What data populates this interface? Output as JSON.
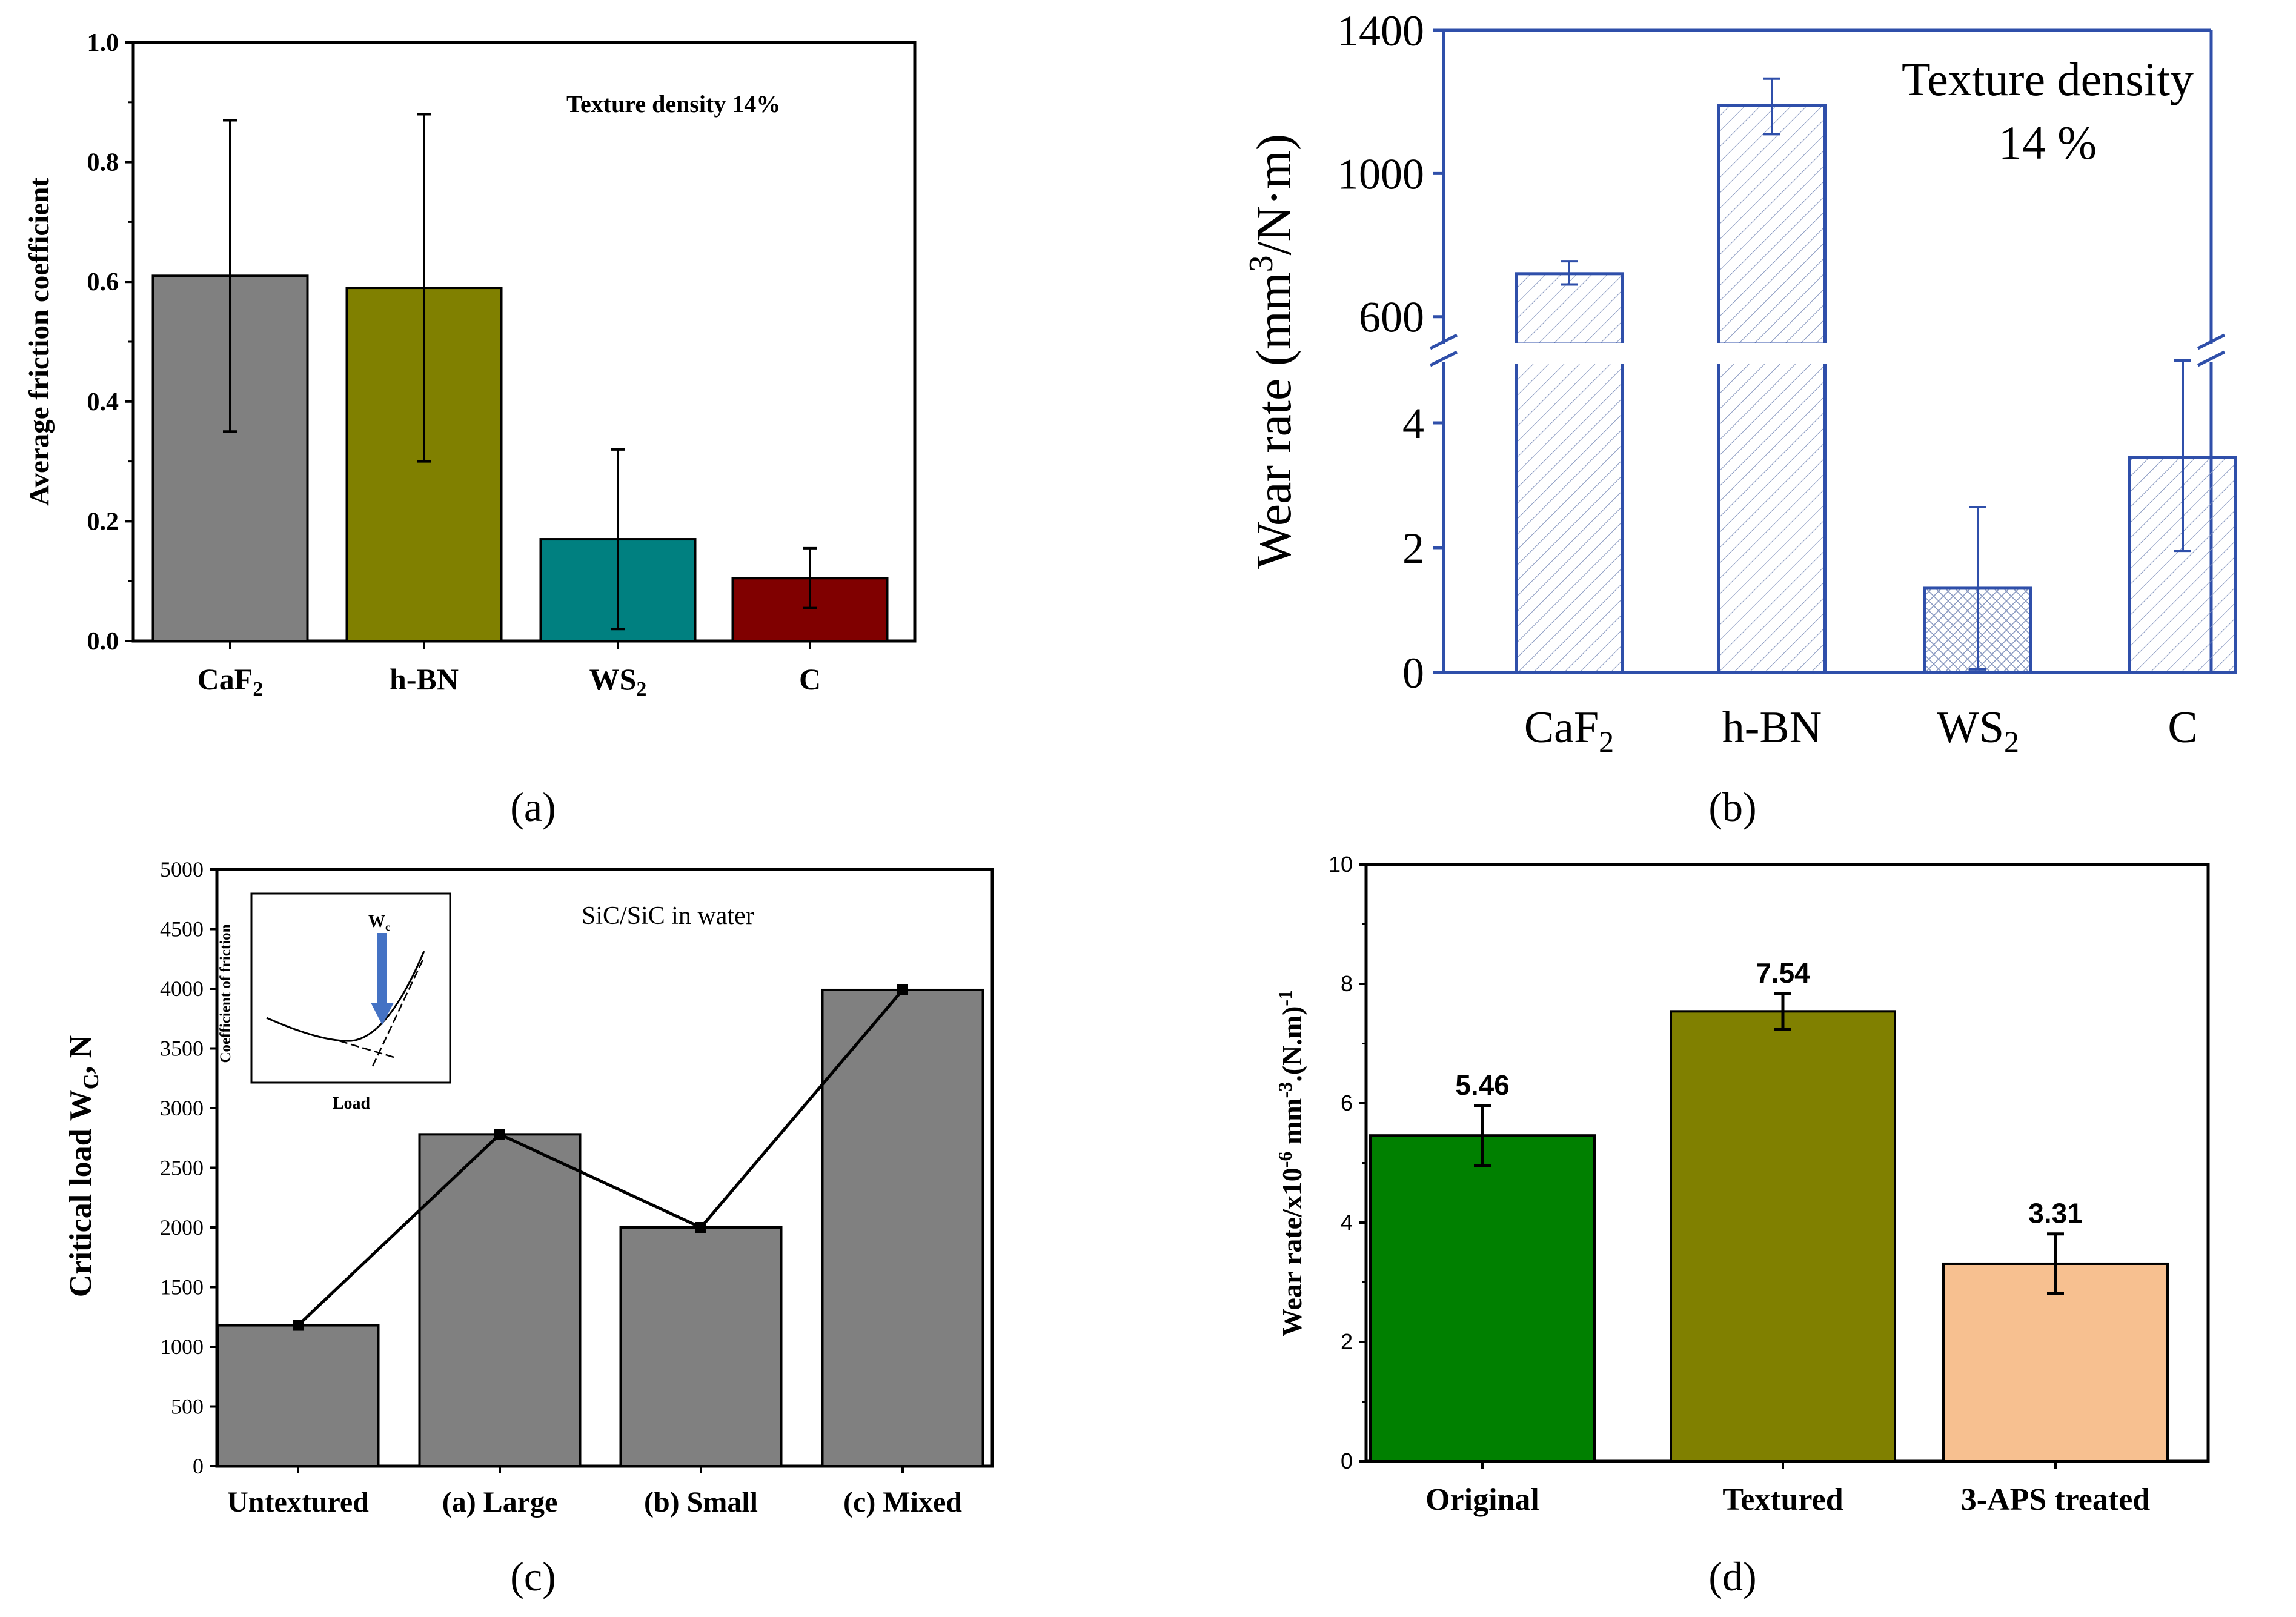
{
  "chart_data": [
    {
      "id": "a",
      "type": "bar",
      "panel_label": "(a)",
      "annotation": "Texture density 14%",
      "ylabel": "Average friction coefficient",
      "xlabel": "",
      "ylim": [
        0,
        1.0
      ],
      "yticks": [
        "0.0",
        "0.2",
        "0.4",
        "0.6",
        "0.8",
        "1.0"
      ],
      "categories": [
        {
          "base": "CaF",
          "sub": "2"
        },
        {
          "base": "h-BN",
          "sub": ""
        },
        {
          "base": "WS",
          "sub": "2"
        },
        {
          "base": "C",
          "sub": ""
        }
      ],
      "values": [
        0.61,
        0.59,
        0.17,
        0.105
      ],
      "error_low": [
        0.35,
        0.3,
        0.02,
        0.055
      ],
      "error_high": [
        0.87,
        0.88,
        0.32,
        0.155
      ],
      "colors": [
        "#808080",
        "#808000",
        "#008080",
        "#800000"
      ]
    },
    {
      "id": "b",
      "type": "bar",
      "panel_label": "(b)",
      "annotation_line1": "Texture density",
      "annotation_line2": "14 %",
      "ylabel_prefix": "Wear rate (mm",
      "ylabel_sup": "3",
      "ylabel_suffix": "/N·m)",
      "broken_axis": true,
      "lower_range": [
        0,
        5
      ],
      "upper_range": [
        520,
        1400
      ],
      "lower_ticks": [
        "0",
        "2",
        "4"
      ],
      "upper_ticks": [
        "600",
        "1000",
        "1400"
      ],
      "categories": [
        {
          "base": "CaF",
          "sub": "2"
        },
        {
          "base": "h-BN",
          "sub": ""
        },
        {
          "base": "WS",
          "sub": "2"
        },
        {
          "base": "C",
          "sub": ""
        }
      ],
      "values": [
        720,
        1190,
        1.35,
        3.45
      ],
      "error_low": [
        690,
        1110,
        0.05,
        1.95
      ],
      "error_high": [
        755,
        1265,
        2.65,
        5.0
      ],
      "color": "#2f4faa"
    },
    {
      "id": "c",
      "type": "bar",
      "panel_label": "(c)",
      "annotation": "SiC/SiC in water",
      "ylabel_prefix": "Critical load W",
      "ylabel_sub": "C",
      "ylabel_suffix": ", N",
      "ylim": [
        0,
        5000
      ],
      "yticks": [
        "0",
        "500",
        "1000",
        "1500",
        "2000",
        "2500",
        "3000",
        "3500",
        "4000",
        "4500",
        "5000"
      ],
      "categories": [
        "Untextured",
        "(a) Large",
        "(b) Small",
        "(c) Mixed"
      ],
      "values": [
        1180,
        2780,
        2000,
        3990
      ],
      "line_overlay": [
        1180,
        2780,
        2000,
        3990
      ],
      "color": "#808080",
      "inset": {
        "ylabel": "Coefficient of friction",
        "xlabel": "Load",
        "marker_label": "W",
        "marker_sub": "c"
      }
    },
    {
      "id": "d",
      "type": "bar",
      "panel_label": "(d)",
      "ylabel_text": "Wear rate/x10",
      "ylabel_sup1": "-6",
      "ylabel_mid": " mm",
      "ylabel_sup2": "-3",
      "ylabel_end": ".(N.m)",
      "ylabel_sup3": "-1",
      "ylim": [
        0,
        10
      ],
      "yticks": [
        "0",
        "2",
        "4",
        "6",
        "8",
        "10"
      ],
      "categories": [
        "Original",
        "Textured",
        "3-APS treated"
      ],
      "values": [
        5.46,
        7.54,
        3.31
      ],
      "value_labels": [
        "5.46",
        "7.54",
        "3.31"
      ],
      "error_low": [
        4.96,
        7.24,
        2.81
      ],
      "error_high": [
        5.96,
        7.84,
        3.81
      ],
      "colors": [
        "#008000",
        "#808000",
        "#f7c090"
      ]
    }
  ]
}
